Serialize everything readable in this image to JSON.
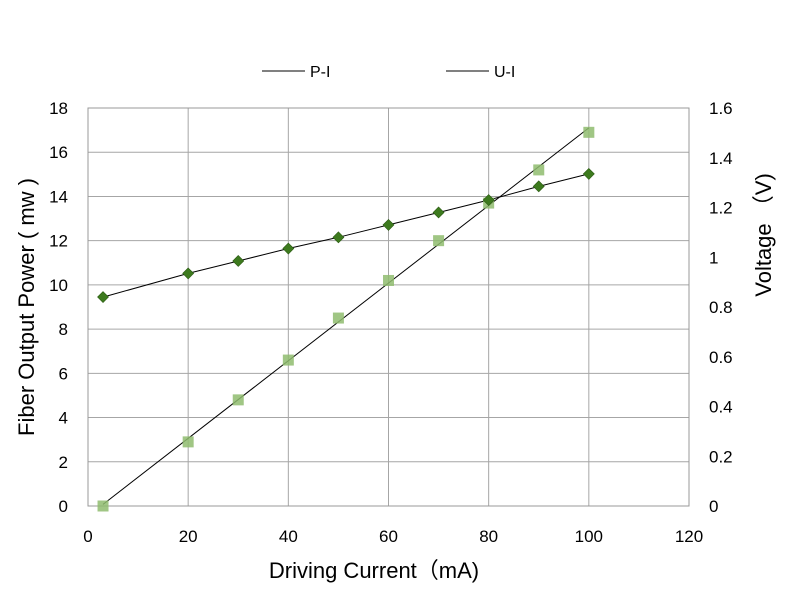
{
  "chart_data": {
    "type": "line",
    "title": "",
    "xlabel": "Driving Current（mA)",
    "ylabel_left": "Fiber Output Power ( mw )",
    "ylabel_right": "Voltage （V)",
    "xlim": [
      0,
      120
    ],
    "ylim_left": [
      0,
      18
    ],
    "ylim_right": [
      0,
      1.6
    ],
    "xticks": [
      0,
      20,
      40,
      60,
      80,
      100,
      120
    ],
    "yticks_left": [
      0,
      2,
      4,
      6,
      8,
      10,
      12,
      14,
      16,
      18
    ],
    "yticks_right": [
      0,
      0.2,
      0.4,
      0.6,
      0.8,
      1,
      1.2,
      1.4,
      1.6
    ],
    "grid": true,
    "legend_position": "top",
    "series": [
      {
        "name": "P-I",
        "axis": "left",
        "marker": "square",
        "color": "#8fbc6e",
        "x": [
          3,
          20,
          30,
          40,
          50,
          60,
          70,
          80,
          90,
          100
        ],
        "y": [
          0,
          2.9,
          4.8,
          6.6,
          8.5,
          10.2,
          12.0,
          13.7,
          15.2,
          16.9
        ]
      },
      {
        "name": "U-I",
        "axis": "right",
        "marker": "diamond",
        "color": "#3d7a1e",
        "x": [
          3,
          20,
          30,
          40,
          50,
          60,
          70,
          80,
          90,
          100
        ],
        "y": [
          0.84,
          0.935,
          0.985,
          1.035,
          1.08,
          1.13,
          1.18,
          1.23,
          1.285,
          1.335
        ]
      }
    ]
  }
}
